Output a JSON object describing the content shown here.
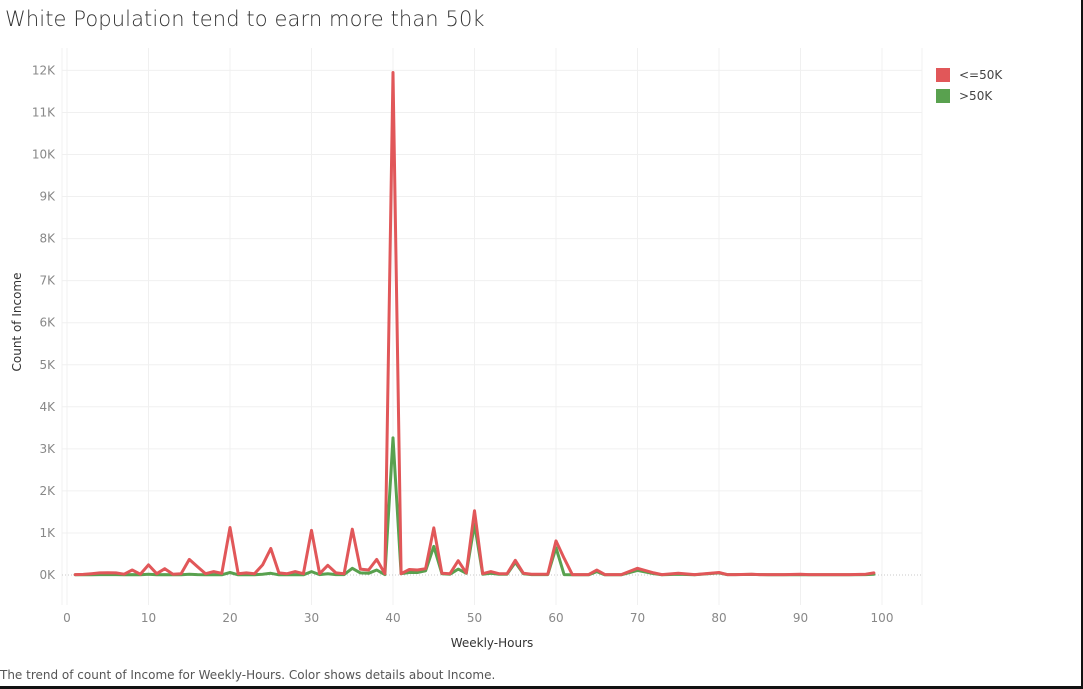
{
  "title": "White Population tend to earn more than 50k",
  "caption": "The trend of count of Income for Weekly-Hours.  Color shows details about Income.",
  "legend": [
    {
      "label": "<=50K",
      "color": "#e15759"
    },
    {
      "label": ">50K",
      "color": "#59a14f"
    }
  ],
  "chart_data": {
    "type": "line",
    "title": "White Population tend to earn more than 50k",
    "xlabel": "Weekly-Hours",
    "ylabel": "Count of Income",
    "xlim": [
      0,
      100
    ],
    "ylim": [
      -700,
      12400
    ],
    "x_ticks": [
      0,
      10,
      20,
      30,
      40,
      50,
      60,
      70,
      80,
      90,
      100
    ],
    "x_tick_labels": [
      "0",
      "10",
      "20",
      "30",
      "40",
      "50",
      "60",
      "70",
      "80",
      "90",
      "100"
    ],
    "y_ticks": [
      0,
      1000,
      2000,
      3000,
      4000,
      5000,
      6000,
      7000,
      8000,
      9000,
      10000,
      11000,
      12000
    ],
    "y_tick_labels": [
      "0K",
      "1K",
      "2K",
      "3K",
      "4K",
      "5K",
      "6K",
      "7K",
      "8K",
      "9K",
      "10K",
      "11K",
      "12K"
    ],
    "grid": true,
    "legend_position": "top-right",
    "series": [
      {
        "name": "<=50K",
        "color": "#e15759",
        "points": [
          [
            1,
            10
          ],
          [
            2,
            15
          ],
          [
            3,
            30
          ],
          [
            4,
            50
          ],
          [
            5,
            55
          ],
          [
            6,
            50
          ],
          [
            7,
            20
          ],
          [
            8,
            120
          ],
          [
            9,
            20
          ],
          [
            10,
            240
          ],
          [
            11,
            30
          ],
          [
            12,
            150
          ],
          [
            13,
            20
          ],
          [
            14,
            30
          ],
          [
            15,
            370
          ],
          [
            16,
            200
          ],
          [
            17,
            30
          ],
          [
            18,
            80
          ],
          [
            19,
            40
          ],
          [
            20,
            1130
          ],
          [
            21,
            30
          ],
          [
            22,
            50
          ],
          [
            23,
            30
          ],
          [
            24,
            240
          ],
          [
            25,
            630
          ],
          [
            26,
            50
          ],
          [
            27,
            30
          ],
          [
            28,
            80
          ],
          [
            29,
            30
          ],
          [
            30,
            1060
          ],
          [
            31,
            30
          ],
          [
            32,
            230
          ],
          [
            33,
            50
          ],
          [
            34,
            30
          ],
          [
            35,
            1090
          ],
          [
            36,
            140
          ],
          [
            37,
            120
          ],
          [
            38,
            370
          ],
          [
            39,
            30
          ],
          [
            40,
            11950
          ],
          [
            41,
            30
          ],
          [
            42,
            130
          ],
          [
            43,
            120
          ],
          [
            44,
            150
          ],
          [
            45,
            1120
          ],
          [
            46,
            40
          ],
          [
            47,
            30
          ],
          [
            48,
            340
          ],
          [
            49,
            50
          ],
          [
            50,
            1530
          ],
          [
            51,
            30
          ],
          [
            52,
            80
          ],
          [
            53,
            30
          ],
          [
            54,
            30
          ],
          [
            55,
            350
          ],
          [
            56,
            40
          ],
          [
            57,
            20
          ],
          [
            58,
            20
          ],
          [
            59,
            20
          ],
          [
            60,
            810
          ],
          [
            61,
            400
          ],
          [
            62,
            10
          ],
          [
            63,
            10
          ],
          [
            64,
            10
          ],
          [
            65,
            120
          ],
          [
            66,
            10
          ],
          [
            67,
            10
          ],
          [
            68,
            10
          ],
          [
            70,
            160
          ],
          [
            72,
            50
          ],
          [
            73,
            10
          ],
          [
            75,
            40
          ],
          [
            77,
            10
          ],
          [
            80,
            60
          ],
          [
            81,
            10
          ],
          [
            82,
            10
          ],
          [
            84,
            20
          ],
          [
            85,
            10
          ],
          [
            86,
            10
          ],
          [
            88,
            10
          ],
          [
            90,
            20
          ],
          [
            91,
            10
          ],
          [
            92,
            10
          ],
          [
            95,
            10
          ],
          [
            96,
            10
          ],
          [
            98,
            20
          ],
          [
            99,
            50
          ]
        ]
      },
      {
        "name": ">50K",
        "color": "#59a14f",
        "points": [
          [
            1,
            5
          ],
          [
            2,
            5
          ],
          [
            3,
            5
          ],
          [
            4,
            10
          ],
          [
            5,
            10
          ],
          [
            6,
            10
          ],
          [
            7,
            5
          ],
          [
            8,
            10
          ],
          [
            9,
            5
          ],
          [
            10,
            20
          ],
          [
            11,
            5
          ],
          [
            12,
            10
          ],
          [
            13,
            5
          ],
          [
            14,
            5
          ],
          [
            15,
            20
          ],
          [
            16,
            10
          ],
          [
            17,
            5
          ],
          [
            18,
            10
          ],
          [
            19,
            5
          ],
          [
            20,
            60
          ],
          [
            21,
            5
          ],
          [
            22,
            10
          ],
          [
            23,
            5
          ],
          [
            24,
            20
          ],
          [
            25,
            40
          ],
          [
            26,
            5
          ],
          [
            27,
            5
          ],
          [
            28,
            10
          ],
          [
            29,
            5
          ],
          [
            30,
            80
          ],
          [
            31,
            10
          ],
          [
            32,
            30
          ],
          [
            33,
            10
          ],
          [
            34,
            10
          ],
          [
            35,
            160
          ],
          [
            36,
            50
          ],
          [
            37,
            40
          ],
          [
            38,
            120
          ],
          [
            39,
            10
          ],
          [
            40,
            3260
          ],
          [
            41,
            30
          ],
          [
            42,
            60
          ],
          [
            43,
            60
          ],
          [
            44,
            100
          ],
          [
            45,
            680
          ],
          [
            46,
            30
          ],
          [
            47,
            20
          ],
          [
            48,
            140
          ],
          [
            49,
            40
          ],
          [
            50,
            1210
          ],
          [
            51,
            20
          ],
          [
            52,
            40
          ],
          [
            53,
            20
          ],
          [
            54,
            20
          ],
          [
            55,
            300
          ],
          [
            56,
            30
          ],
          [
            57,
            10
          ],
          [
            58,
            10
          ],
          [
            59,
            10
          ],
          [
            60,
            650
          ],
          [
            61,
            10
          ],
          [
            62,
            5
          ],
          [
            63,
            5
          ],
          [
            64,
            5
          ],
          [
            65,
            80
          ],
          [
            66,
            5
          ],
          [
            67,
            5
          ],
          [
            68,
            5
          ],
          [
            70,
            110
          ],
          [
            72,
            30
          ],
          [
            73,
            5
          ],
          [
            75,
            20
          ],
          [
            77,
            5
          ],
          [
            80,
            50
          ],
          [
            81,
            10
          ],
          [
            82,
            10
          ],
          [
            84,
            15
          ],
          [
            85,
            10
          ],
          [
            86,
            5
          ],
          [
            88,
            5
          ],
          [
            90,
            10
          ],
          [
            91,
            5
          ],
          [
            92,
            5
          ],
          [
            95,
            5
          ],
          [
            96,
            5
          ],
          [
            98,
            10
          ],
          [
            99,
            20
          ]
        ]
      }
    ]
  }
}
